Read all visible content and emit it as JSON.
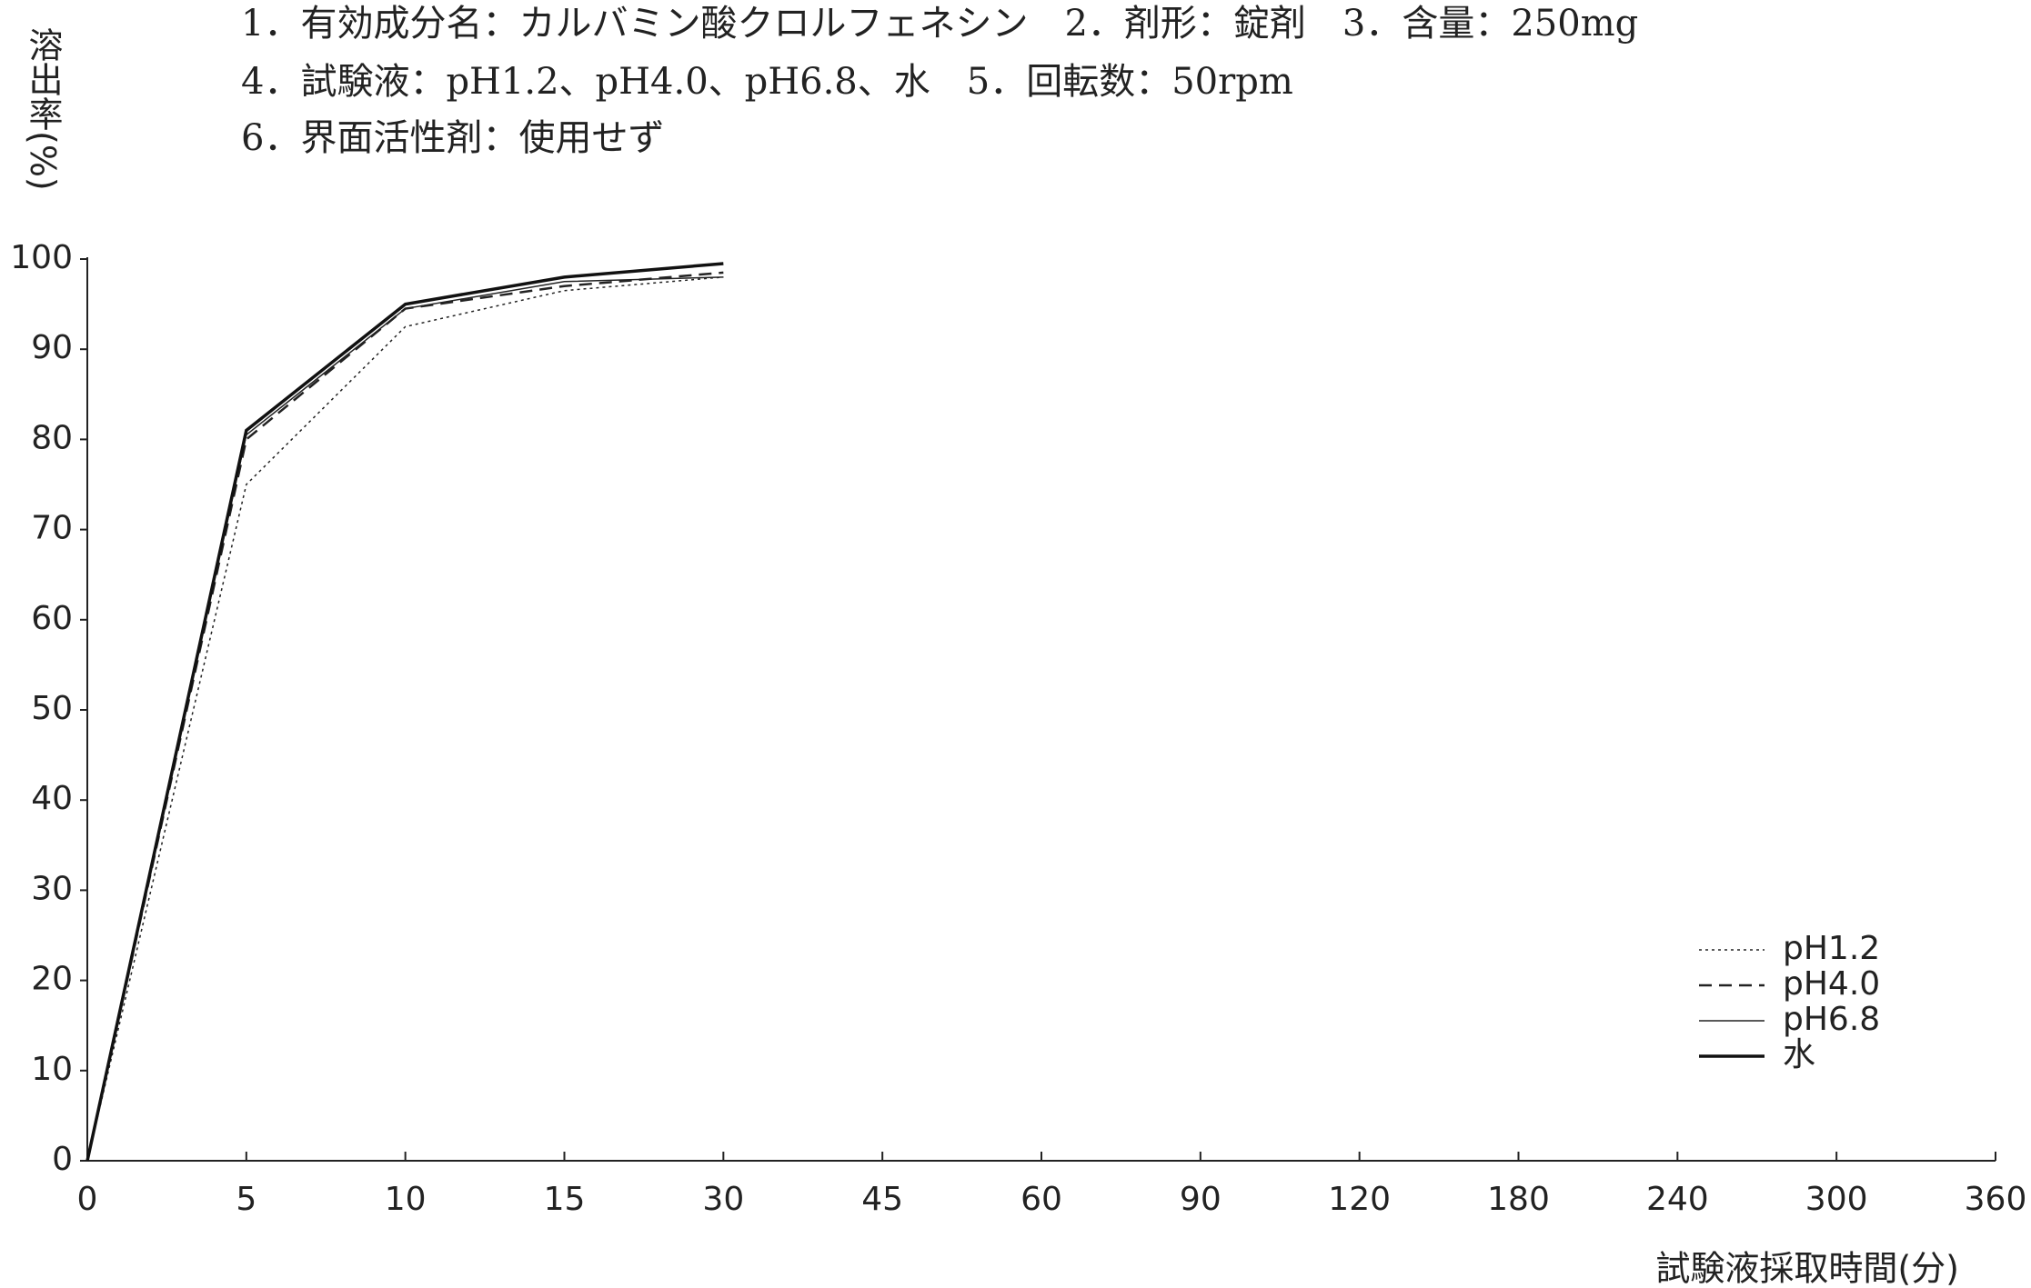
{
  "chart_data": {
    "type": "line",
    "title_lines": [
      "1．有効成分名：カルバミン酸クロルフェネシン　2．剤形：錠剤　3．含量：250mg",
      "4．試験液：pH1.2、pH4.0、pH6.8、水　5．回転数：50rpm",
      "6．界面活性剤：使用せず"
    ],
    "y_label": "溶出率(%)",
    "x_label": "試験液採取時間(分)",
    "categories": [
      0,
      5,
      10,
      15,
      30,
      45,
      60,
      90,
      120,
      180,
      240,
      300,
      360
    ],
    "series": [
      {
        "name": "pH1.2",
        "color": "#222222",
        "line_style": "dotted",
        "values": [
          0,
          75,
          92.5,
          96.5,
          98,
          null,
          null,
          null,
          null,
          null,
          null,
          null,
          null
        ]
      },
      {
        "name": "pH4.0",
        "color": "#222222",
        "line_style": "dashed",
        "values": [
          0,
          80,
          94.5,
          97,
          98.5,
          null,
          null,
          null,
          null,
          null,
          null,
          null,
          null
        ]
      },
      {
        "name": "pH6.8",
        "color": "#222222",
        "line_style": "thin",
        "values": [
          0,
          80.5,
          94.5,
          97.5,
          98,
          null,
          null,
          null,
          null,
          null,
          null,
          null,
          null
        ]
      },
      {
        "name": "水",
        "color": "#111111",
        "line_style": "thick",
        "values": [
          0,
          81,
          95,
          98,
          99.5,
          null,
          null,
          null,
          null,
          null,
          null,
          null,
          null
        ]
      }
    ],
    "ylim": [
      0,
      100
    ],
    "yticks": [
      0,
      10,
      20,
      30,
      40,
      50,
      60,
      70,
      80,
      90,
      100
    ],
    "grid": false,
    "legend": "lower right"
  }
}
